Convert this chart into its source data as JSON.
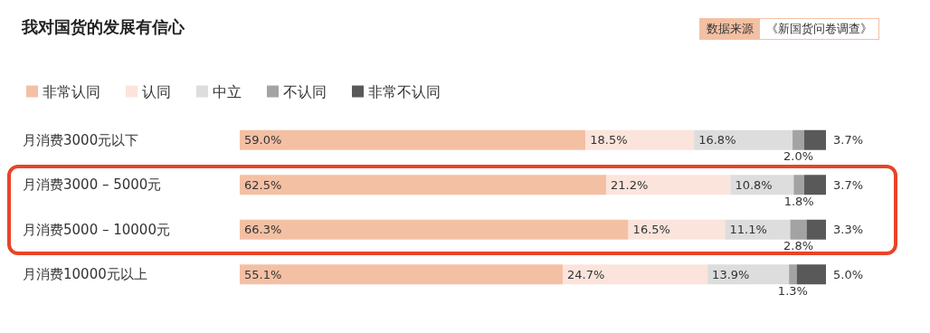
{
  "chart_data": {
    "type": "bar",
    "orientation": "horizontal",
    "stacked": true,
    "title": "我对国货的发展有信心",
    "annotations": [
      "数据来源",
      "《新国货问卷调查》"
    ],
    "categories": [
      "月消费3000元以下",
      "月消费3000 – 5000元",
      "月消费5000 – 10000元",
      "月消费10000元以上"
    ],
    "series": [
      {
        "name": "非常认同",
        "color": "#f4c0a4",
        "values": [
          59.0,
          62.5,
          66.3,
          55.1
        ],
        "value_labels": [
          "59.0%",
          "62.5%",
          "66.3%",
          "55.1%"
        ]
      },
      {
        "name": "认同",
        "color": "#fbe4dc",
        "values": [
          18.5,
          21.2,
          16.5,
          24.7
        ],
        "value_labels": [
          "18.5%",
          "21.2%",
          "16.5%",
          "24.7%"
        ]
      },
      {
        "name": "中立",
        "color": "#dddddd",
        "values": [
          16.8,
          10.8,
          11.1,
          13.9
        ],
        "value_labels": [
          "16.8%",
          "10.8%",
          "11.1%",
          "13.9%"
        ]
      },
      {
        "name": "不认同",
        "color": "#a3a3a3",
        "values": [
          2.0,
          1.8,
          2.8,
          1.3
        ],
        "value_labels": [
          "2.0%",
          "1.8%",
          "2.8%",
          "1.3%"
        ]
      },
      {
        "name": "非常不认同",
        "color": "#595959",
        "values": [
          3.7,
          3.7,
          3.3,
          5.0
        ],
        "value_labels": [
          "3.7%",
          "3.7%",
          "3.3%",
          "5.0%"
        ]
      }
    ],
    "xlim": [
      0,
      100
    ],
    "tick_labels": "y",
    "legend": "top left"
  }
}
